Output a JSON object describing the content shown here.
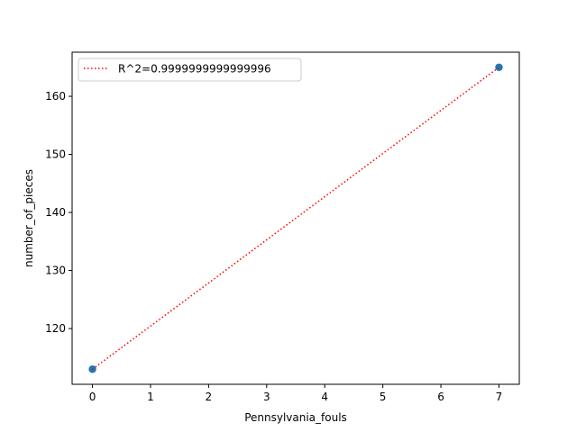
{
  "chart_data": {
    "type": "scatter",
    "xlabel": "Pennsylvania_fouls",
    "ylabel": "number_of_pieces",
    "xlim": [
      -0.35,
      7.35
    ],
    "ylim": [
      110.4,
      167.6
    ],
    "xticks": [
      0,
      1,
      2,
      3,
      4,
      5,
      6,
      7
    ],
    "yticks": [
      120,
      130,
      140,
      150,
      160
    ],
    "grid": false,
    "legend_position": "top-left",
    "series": [
      {
        "kind": "scatter",
        "color": "#1f77b4",
        "points": [
          {
            "x": 0,
            "y": 113
          },
          {
            "x": 7,
            "y": 165
          }
        ]
      },
      {
        "kind": "line",
        "style": "dotted",
        "color": "#ff0000",
        "name": "R^2=0.9999999999999996",
        "points": [
          {
            "x": 0,
            "y": 113
          },
          {
            "x": 7,
            "y": 165
          }
        ]
      }
    ]
  }
}
